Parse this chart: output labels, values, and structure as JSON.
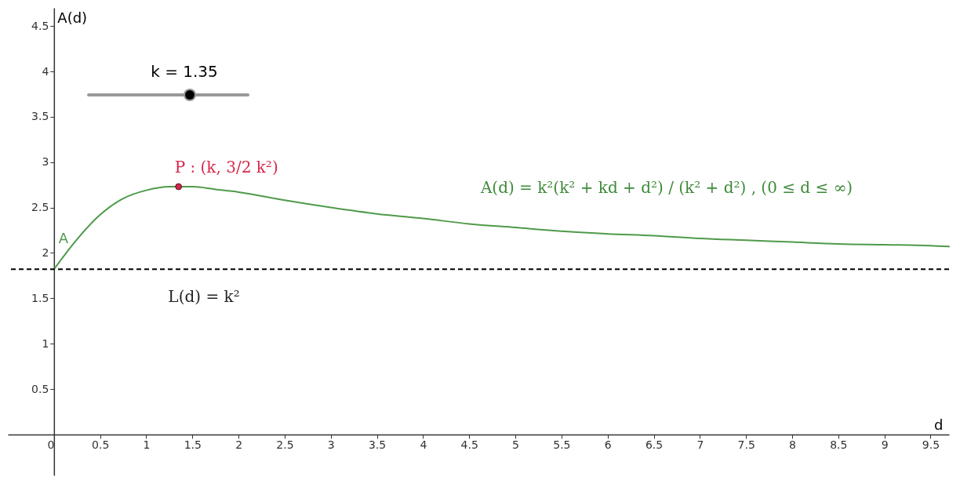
{
  "chart_data": {
    "type": "line",
    "xlabel": "d",
    "ylabel": "A(d)",
    "xlim": [
      -0.5,
      9.7
    ],
    "ylim": [
      -0.45,
      4.7
    ],
    "xticks": [
      0,
      0.5,
      1,
      1.5,
      2,
      2.5,
      3,
      3.5,
      4,
      4.5,
      5,
      5.5,
      6,
      6.5,
      7,
      7.5,
      8,
      8.5,
      9,
      9.5
    ],
    "yticks": [
      0.5,
      1,
      1.5,
      2,
      2.5,
      3,
      3.5,
      4,
      4.5
    ],
    "grid": false,
    "marker": "none",
    "line_style": "solid",
    "series": [
      {
        "name": "A",
        "type": "line",
        "color": "#4f9a4a",
        "x": [
          0,
          0.25,
          0.5,
          0.75,
          1,
          1.25,
          1.35,
          1.5,
          1.75,
          2,
          2.5,
          3,
          3.5,
          4,
          4.5,
          5,
          5.5,
          6,
          6.5,
          7,
          7.5,
          8,
          8.5,
          9,
          9.5,
          9.7
        ],
        "values": [
          1.82,
          2.15,
          2.42,
          2.6,
          2.69,
          2.73,
          2.73,
          2.73,
          2.7,
          2.67,
          2.58,
          2.5,
          2.43,
          2.38,
          2.32,
          2.28,
          2.24,
          2.21,
          2.19,
          2.16,
          2.14,
          2.12,
          2.1,
          2.09,
          2.08,
          2.07
        ]
      },
      {
        "type": "scatter",
        "color": "#d6264a",
        "marker": "circle",
        "x": [
          1.35
        ],
        "values": [
          2.73
        ]
      }
    ],
    "ref_lines": [
      {
        "axis": "y",
        "value": 1.82,
        "label": "L(d) = k²",
        "color": "#000000",
        "line_style": "dashed"
      }
    ],
    "annotations": [
      "k = 1.35",
      {
        "text": "P : (k, 3/2 k²)",
        "x": 1.35,
        "y": 2.73
      },
      "A(d) = k²(k² + kd + d²) / (k² + d²) , (0 ≤ d ≤ ∞)"
    ]
  }
}
